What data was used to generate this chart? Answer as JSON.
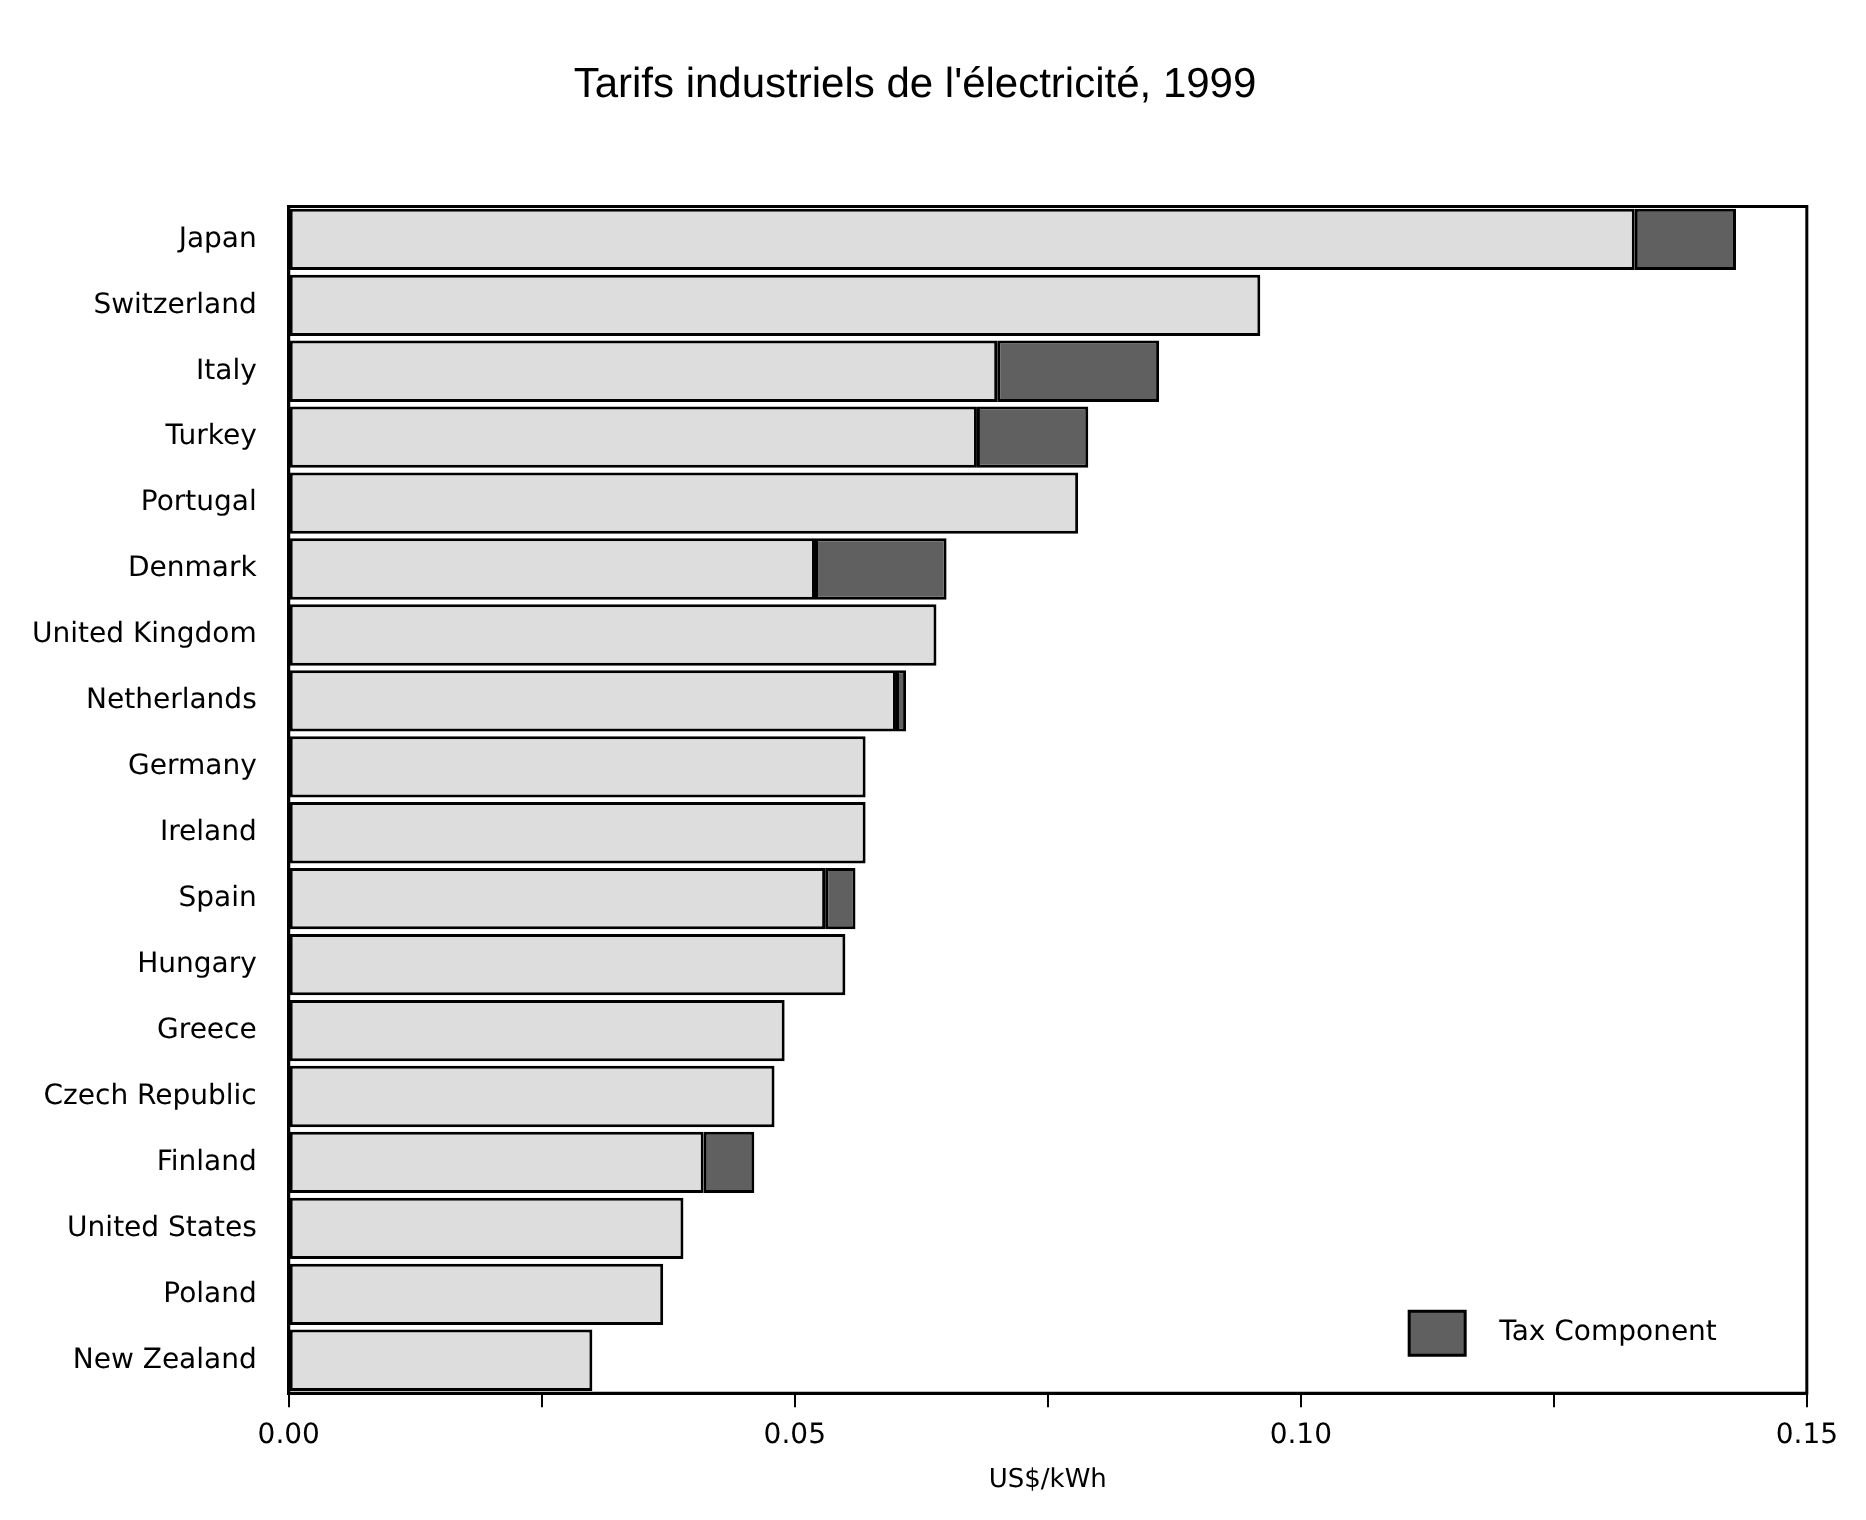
{
  "chart_data": {
    "type": "bar",
    "orientation": "horizontal",
    "stacked": true,
    "title": "Tarifs industriels de l'électricité, 1999",
    "xlabel": "US$/kWh",
    "categories": [
      "Japan",
      "Switzerland",
      "Italy",
      "Turkey",
      "Portugal",
      "Denmark",
      "United Kingdom",
      "Netherlands",
      "Germany",
      "Ireland",
      "Spain",
      "Hungary",
      "Greece",
      "Czech Republic",
      "Finland",
      "United States",
      "Poland",
      "New Zealand"
    ],
    "series": [
      {
        "color": "#dddddd",
        "values": [
          0.133,
          0.096,
          0.07,
          0.068,
          0.078,
          0.052,
          0.064,
          0.06,
          0.057,
          0.057,
          0.053,
          0.055,
          0.049,
          0.048,
          0.041,
          0.039,
          0.037,
          0.03
        ]
      },
      {
        "name": "Tax Component",
        "color": "#606060",
        "values": [
          0.01,
          null,
          0.016,
          0.011,
          null,
          0.013,
          null,
          0.001,
          null,
          null,
          0.003,
          null,
          null,
          null,
          0.005,
          null,
          null,
          null
        ]
      }
    ],
    "xlim": [
      0,
      0.15
    ],
    "xticks": [
      {
        "value": 0,
        "label": "0.00"
      },
      {
        "value": 0.025,
        "label": null
      },
      0.05,
      {
        "value": 0.075,
        "label": null
      },
      {
        "value": 0.1,
        "label": "0.10"
      },
      {
        "value": 0.125,
        "label": null
      },
      0.15
    ],
    "grid": false,
    "legend": "bottom right"
  }
}
